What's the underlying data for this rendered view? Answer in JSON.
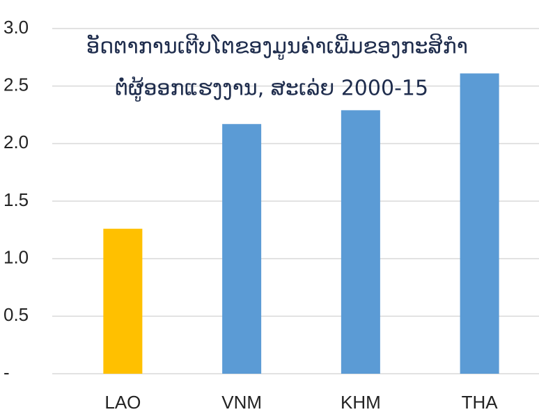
{
  "chart_data": {
    "type": "bar",
    "title": [
      "ອັດຕາການເຕີບໂຕຂອງມູນຄ່າເພີ່ມຂອງກະສິກຳ",
      "ຕໍ່ຜູ້ອອກແຮງງານ, ສະເລ່ຍ 2000-15"
    ],
    "categories": [
      "LAO",
      "VNM",
      "KHM",
      "THA"
    ],
    "values": [
      1.26,
      2.17,
      2.29,
      2.61
    ],
    "colors": [
      "#ffc000",
      "#5b9bd5",
      "#5b9bd5",
      "#5b9bd5"
    ],
    "ylim": [
      0,
      3
    ],
    "yticks": [
      {
        "value": 0,
        "label": "-"
      },
      0.5,
      {
        "value": 1,
        "label": "1.0"
      },
      1.5,
      {
        "value": 2,
        "label": "2.0"
      },
      2.5,
      {
        "value": 3,
        "label": "3.0"
      }
    ],
    "grid": true
  }
}
